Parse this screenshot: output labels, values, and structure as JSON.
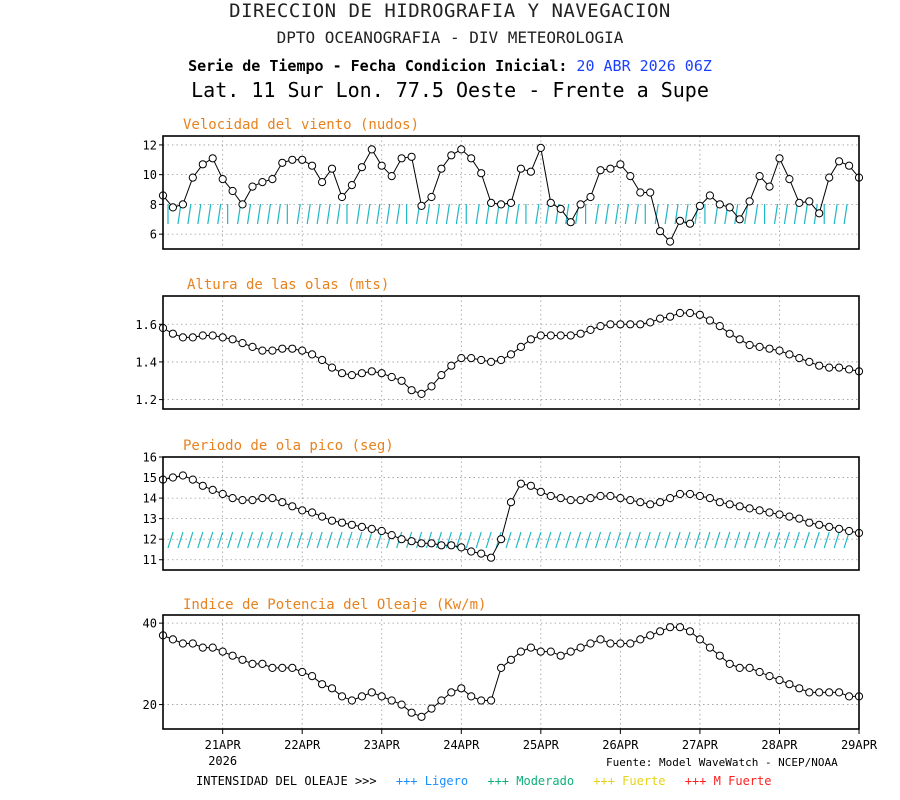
{
  "header": {
    "title": "DIRECCION DE HIDROGRAFIA Y NAVEGACION",
    "subtitle": "DPTO OCEANOGRAFIA - DIV METEOROLOGIA",
    "series_label": "Serie de Tiempo - Fecha Condicion Inicial:",
    "init_date": "20 ABR 2026 06Z",
    "location": "Lat. 11 Sur  Lon. 77.5 Oeste - Frente a Supe"
  },
  "colors": {
    "panel_title": "#e8821e",
    "arrows": "#1fb8c6",
    "init_date": "#1a3fff",
    "legend_ligero": "#1a8fff",
    "legend_moderado": "#0fb07a",
    "legend_fuerte": "#e6d21a",
    "legend_mfuerte": "#ff2020"
  },
  "x_axis": {
    "ticks": [
      {
        "label": "21APR",
        "day": 21
      },
      {
        "label": "22APR",
        "day": 22
      },
      {
        "label": "23APR",
        "day": 23
      },
      {
        "label": "24APR",
        "day": 24
      },
      {
        "label": "25APR",
        "day": 25
      },
      {
        "label": "26APR",
        "day": 26
      },
      {
        "label": "27APR",
        "day": 27
      },
      {
        "label": "28APR",
        "day": 28
      },
      {
        "label": "29APR",
        "day": 29
      }
    ],
    "year_label": "2026",
    "start": "2026-04-20T06Z",
    "end": "2026-04-29T00Z",
    "step_hours": 3
  },
  "footer": {
    "intensity_label": "INTENSIDAD DEL OLEAJE >>>",
    "legend": [
      {
        "label": "+++ Ligero",
        "color": "#1a8fff"
      },
      {
        "label": "+++ Moderado",
        "color": "#0fb07a"
      },
      {
        "label": "+++ Fuerte",
        "color": "#e6d21a"
      },
      {
        "label": "+++ M Fuerte",
        "color": "#ff2020"
      }
    ],
    "source": "Fuente: Model WaveWatch - NCEP/NOAA"
  },
  "chart_data": [
    {
      "type": "line",
      "title": "Velocidad del viento (nudos)",
      "ylim": [
        5,
        12.6
      ],
      "yticks": [
        6,
        8,
        10,
        12
      ],
      "grid": true,
      "arrows": "wind direction",
      "values": [
        8.6,
        7.8,
        8.0,
        9.8,
        10.7,
        11.1,
        9.7,
        8.9,
        8.0,
        9.2,
        9.5,
        9.7,
        10.8,
        11.0,
        11.0,
        10.6,
        9.5,
        10.4,
        8.5,
        9.3,
        10.5,
        11.7,
        10.6,
        9.9,
        11.1,
        11.2,
        7.9,
        8.5,
        10.4,
        11.3,
        11.7,
        11.1,
        10.1,
        8.1,
        8.0,
        8.1,
        10.4,
        10.2,
        11.8,
        8.1,
        7.7,
        6.8,
        8.0,
        8.5,
        10.3,
        10.4,
        10.7,
        9.9,
        8.8,
        8.8,
        6.2,
        5.5,
        6.9,
        6.7,
        7.9,
        8.6,
        8.0,
        7.8,
        7.0,
        8.2,
        9.9,
        9.2,
        11.1,
        9.7,
        8.1,
        8.2,
        7.4,
        9.8,
        10.9,
        10.6,
        9.8
      ]
    },
    {
      "type": "line",
      "title": "Altura de las olas (mts)",
      "ylim": [
        1.15,
        1.75
      ],
      "yticks": [
        1.2,
        1.4,
        1.6
      ],
      "yticklabels": [
        "1.2",
        "1.4",
        "1.6"
      ],
      "grid": true,
      "values": [
        1.58,
        1.55,
        1.53,
        1.53,
        1.54,
        1.54,
        1.53,
        1.52,
        1.5,
        1.48,
        1.46,
        1.46,
        1.47,
        1.47,
        1.46,
        1.44,
        1.41,
        1.37,
        1.34,
        1.33,
        1.34,
        1.35,
        1.34,
        1.32,
        1.3,
        1.25,
        1.23,
        1.27,
        1.33,
        1.38,
        1.42,
        1.42,
        1.41,
        1.4,
        1.41,
        1.44,
        1.48,
        1.52,
        1.54,
        1.54,
        1.54,
        1.54,
        1.55,
        1.57,
        1.59,
        1.6,
        1.6,
        1.6,
        1.6,
        1.61,
        1.63,
        1.64,
        1.66,
        1.66,
        1.65,
        1.62,
        1.59,
        1.55,
        1.52,
        1.49,
        1.48,
        1.47,
        1.46,
        1.44,
        1.42,
        1.4,
        1.38,
        1.37,
        1.37,
        1.36,
        1.35
      ]
    },
    {
      "type": "line",
      "title": "Periodo de ola pico (seg)",
      "ylim": [
        10.5,
        16
      ],
      "yticks": [
        11,
        12,
        13,
        14,
        15,
        16
      ],
      "grid": true,
      "arrows": "wave direction",
      "values": [
        14.9,
        15.0,
        15.1,
        14.9,
        14.6,
        14.4,
        14.2,
        14.0,
        13.9,
        13.9,
        14.0,
        14.0,
        13.8,
        13.6,
        13.4,
        13.3,
        13.1,
        12.9,
        12.8,
        12.7,
        12.6,
        12.5,
        12.4,
        12.2,
        12.0,
        11.9,
        11.8,
        11.8,
        11.7,
        11.7,
        11.6,
        11.4,
        11.3,
        11.1,
        12.0,
        13.8,
        14.7,
        14.6,
        14.3,
        14.1,
        14.0,
        13.9,
        13.9,
        14.0,
        14.1,
        14.1,
        14.0,
        13.9,
        13.8,
        13.7,
        13.8,
        14.0,
        14.2,
        14.2,
        14.1,
        14.0,
        13.8,
        13.7,
        13.6,
        13.5,
        13.4,
        13.3,
        13.2,
        13.1,
        13.0,
        12.8,
        12.7,
        12.6,
        12.5,
        12.4,
        12.3
      ]
    },
    {
      "type": "line",
      "title": "Indice de Potencia del Oleaje (Kw/m)",
      "ylim": [
        14,
        42
      ],
      "yticks": [
        20,
        40
      ],
      "grid": true,
      "values": [
        37,
        36,
        35,
        35,
        34,
        34,
        33,
        32,
        31,
        30,
        30,
        29,
        29,
        29,
        28,
        27,
        25,
        24,
        22,
        21,
        22,
        23,
        22,
        21,
        20,
        18,
        17,
        19,
        21,
        23,
        24,
        22,
        21,
        21,
        29,
        31,
        33,
        34,
        33,
        33,
        32,
        33,
        34,
        35,
        36,
        35,
        35,
        35,
        36,
        37,
        38,
        39,
        39,
        38,
        36,
        34,
        32,
        30,
        29,
        29,
        28,
        27,
        26,
        25,
        24,
        23,
        23,
        23,
        23,
        22,
        22
      ]
    }
  ]
}
